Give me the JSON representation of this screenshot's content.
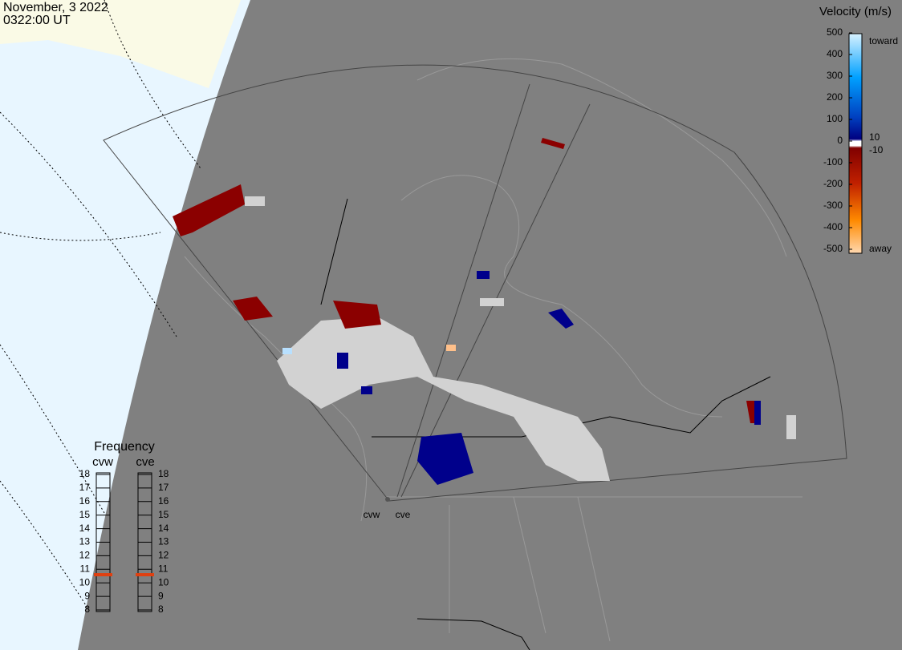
{
  "header": {
    "date": "November, 3 2022",
    "time": "0322:00 UT"
  },
  "velocity_scale": {
    "title": "Velocity (m/s)",
    "ticks": [
      500,
      400,
      300,
      200,
      100,
      0,
      -100,
      -200,
      -300,
      -400,
      -500
    ],
    "toward": "toward",
    "away": "away",
    "inner_ticks": [
      10,
      -10
    ]
  },
  "frequency": {
    "title": "Frequency",
    "ticks": [
      18,
      17,
      16,
      15,
      14,
      13,
      12,
      11,
      10,
      9,
      8
    ],
    "radars": [
      {
        "name": "cvw",
        "value": 10.6
      },
      {
        "name": "cve",
        "value": 10.6
      }
    ]
  },
  "radar_sites": [
    "cvw",
    "cve"
  ]
}
